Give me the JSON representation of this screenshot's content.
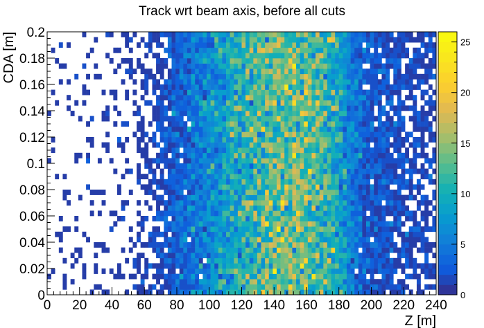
{
  "chart_data": {
    "type": "heatmap",
    "title": "Track wrt beam axis, before all cuts",
    "xlabel": "Z [m]",
    "ylabel": "CDA [m]",
    "xlim": [
      0,
      240
    ],
    "ylim": [
      0,
      0.2
    ],
    "x_ticks": [
      "0",
      "20",
      "40",
      "60",
      "80",
      "100",
      "120",
      "140",
      "160",
      "180",
      "200",
      "220",
      "240"
    ],
    "y_ticks": [
      "0",
      "0.02",
      "0.04",
      "0.06",
      "0.08",
      "0.1",
      "0.12",
      "0.14",
      "0.16",
      "0.18",
      "0.2"
    ],
    "colorbar": {
      "range": [
        0,
        26
      ],
      "ticks": [
        "0",
        "5",
        "10",
        "15",
        "20",
        "25"
      ]
    },
    "bins": {
      "x_count": 100,
      "y_count": 50,
      "x_width": 2.4,
      "y_width": 0.004
    },
    "density_profile": {
      "z": [
        0,
        20,
        40,
        55,
        65,
        75,
        85,
        95,
        105,
        115,
        125,
        135,
        145,
        155,
        165,
        175,
        182,
        190,
        200,
        210,
        220,
        230,
        240
      ],
      "mean_counts": [
        0.12,
        0.15,
        0.2,
        0.35,
        0.8,
        2.0,
        3.5,
        5.5,
        7.5,
        9.5,
        11.5,
        13.0,
        14.0,
        14.0,
        13.0,
        11.0,
        8.0,
        4.5,
        2.5,
        1.8,
        1.4,
        1.1,
        0.9
      ]
    },
    "grid": false,
    "legend": "none"
  }
}
